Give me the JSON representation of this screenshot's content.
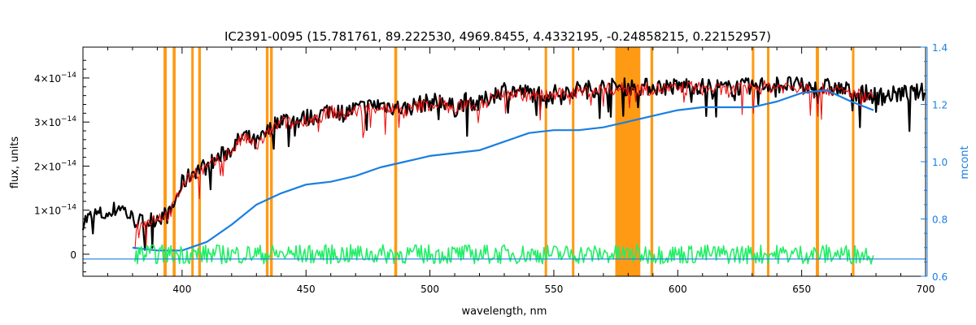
{
  "chart_data": {
    "type": "line",
    "title": "IC2391-0095    (15.781761, 89.222530, 4969.8455, 4.4332195, -0.24858215, 0.22152957)",
    "xlabel": "wavelength, nm",
    "ylabel": "flux, units",
    "y2label": "mcont",
    "xlim": [
      360,
      700
    ],
    "ylim": [
      -0.5,
      4.7
    ],
    "y_scale_label": "×10⁻¹⁴",
    "y2lim": [
      0.6,
      1.4
    ],
    "x_ticks": [
      400,
      450,
      500,
      550,
      600,
      650,
      700
    ],
    "y_ticks": [
      {
        "value": 0,
        "label": "0"
      },
      {
        "value": 1,
        "label": "1×10",
        "exp": "−14"
      },
      {
        "value": 2,
        "label": "2×10",
        "exp": "−14"
      },
      {
        "value": 3,
        "label": "3×10",
        "exp": "−14"
      },
      {
        "value": 4,
        "label": "4×10",
        "exp": "−14"
      }
    ],
    "y2_ticks": [
      0.6,
      0.8,
      1.0,
      1.2,
      1.4
    ],
    "y2_tick_labels": [
      "0.6",
      "0.8",
      "1.0",
      "1.2",
      "1.4"
    ],
    "masked_regions": [
      [
        392.5,
        393.8
      ],
      [
        396.2,
        397.4
      ],
      [
        403.7,
        404.7
      ],
      [
        406.5,
        407.6
      ],
      [
        433.8,
        434.9
      ],
      [
        435.5,
        436.6
      ],
      [
        485.6,
        486.8
      ],
      [
        546.3,
        547.3
      ],
      [
        557.3,
        558.3
      ],
      [
        574.8,
        584.9
      ],
      [
        589.0,
        590.1
      ],
      [
        629.9,
        630.9
      ],
      [
        636.0,
        637.0
      ],
      [
        655.7,
        657.0
      ],
      [
        670.3,
        671.3
      ]
    ],
    "series": [
      {
        "key": "observed",
        "x": [
          360,
          365,
          370,
          375,
          380,
          385,
          390,
          395,
          400,
          405,
          410,
          415,
          420,
          425,
          430,
          435,
          440,
          445,
          450,
          455,
          460,
          465,
          470,
          475,
          480,
          485,
          490,
          495,
          500,
          505,
          510,
          515,
          520,
          525,
          530,
          535,
          540,
          545,
          550,
          555,
          560,
          565,
          570,
          575,
          580,
          585,
          590,
          595,
          600,
          605,
          610,
          615,
          620,
          625,
          630,
          635,
          640,
          645,
          650,
          655,
          660,
          665,
          670,
          675,
          680,
          685,
          690,
          695,
          700
        ],
        "y": [
          0.75,
          0.9,
          0.9,
          1.1,
          0.8,
          0.7,
          0.85,
          0.9,
          1.6,
          1.9,
          2.0,
          2.2,
          2.4,
          2.7,
          2.5,
          2.8,
          3.1,
          3.0,
          3.1,
          3.15,
          3.3,
          3.2,
          3.3,
          3.35,
          3.4,
          3.35,
          3.3,
          3.4,
          3.45,
          3.5,
          3.3,
          3.5,
          3.4,
          3.6,
          3.75,
          3.7,
          3.65,
          3.65,
          3.65,
          3.7,
          3.75,
          3.75,
          3.8,
          3.8,
          3.8,
          3.8,
          3.8,
          3.8,
          3.8,
          3.85,
          3.8,
          3.8,
          3.75,
          3.8,
          3.8,
          3.85,
          3.85,
          3.85,
          3.8,
          3.75,
          3.8,
          3.75,
          3.7,
          3.65,
          3.6,
          3.6,
          3.65,
          3.65,
          3.7
        ],
        "noise": 0.2
      },
      {
        "key": "model",
        "x": [
          381,
          385,
          390,
          395,
          400,
          405,
          410,
          415,
          420,
          425,
          430,
          435,
          440,
          445,
          450,
          455,
          460,
          465,
          470,
          475,
          480,
          485,
          490,
          495,
          500,
          505,
          510,
          515,
          520,
          525,
          530,
          535,
          540,
          545,
          550,
          555,
          560,
          565,
          570,
          575,
          580,
          585,
          590,
          595,
          600,
          605,
          610,
          615,
          620,
          625,
          630,
          635,
          640,
          645,
          650,
          655,
          660,
          665,
          670,
          675,
          679
        ],
        "y": [
          0.6,
          0.7,
          0.85,
          0.9,
          1.55,
          1.85,
          1.95,
          2.15,
          2.35,
          2.65,
          2.45,
          2.75,
          3.0,
          2.95,
          3.05,
          3.1,
          3.25,
          3.15,
          3.25,
          3.3,
          3.35,
          3.3,
          3.25,
          3.35,
          3.4,
          3.45,
          3.25,
          3.45,
          3.35,
          3.55,
          3.7,
          3.65,
          3.6,
          3.6,
          3.6,
          3.65,
          3.7,
          3.7,
          3.75,
          3.75,
          3.75,
          3.75,
          3.75,
          3.75,
          3.75,
          3.8,
          3.75,
          3.75,
          3.7,
          3.75,
          3.75,
          3.8,
          3.8,
          3.8,
          3.75,
          3.7,
          3.75,
          3.7,
          3.65,
          3.6,
          3.58
        ],
        "noise": 0.15
      },
      {
        "key": "continuum",
        "axis": "right",
        "x": [
          380,
          390,
          400,
          410,
          420,
          430,
          440,
          450,
          460,
          470,
          480,
          490,
          500,
          510,
          520,
          530,
          540,
          550,
          560,
          570,
          580,
          590,
          600,
          610,
          620,
          630,
          640,
          650,
          660,
          670,
          679
        ],
        "y": [
          0.7,
          0.69,
          0.69,
          0.72,
          0.78,
          0.85,
          0.89,
          0.92,
          0.93,
          0.95,
          0.98,
          1.0,
          1.02,
          1.03,
          1.04,
          1.07,
          1.1,
          1.11,
          1.11,
          1.12,
          1.14,
          1.16,
          1.18,
          1.19,
          1.19,
          1.19,
          1.21,
          1.24,
          1.25,
          1.21,
          1.18
        ]
      },
      {
        "key": "residuals",
        "x0": 381,
        "x1": 679,
        "y": 0.0,
        "noise": 0.22
      },
      {
        "key": "baseline",
        "axis": "right",
        "x": [
          360,
          700
        ],
        "y": [
          0.66,
          0.66
        ]
      }
    ],
    "grid": false
  }
}
